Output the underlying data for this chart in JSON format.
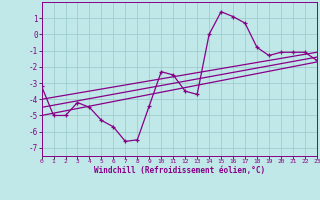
{
  "xlabel": "Windchill (Refroidissement éolien,°C)",
  "xlim": [
    0,
    23
  ],
  "ylim": [
    -7.5,
    2.0
  ],
  "yticks": [
    1,
    0,
    -1,
    -2,
    -3,
    -4,
    -5,
    -6,
    -7
  ],
  "xticks": [
    0,
    1,
    2,
    3,
    4,
    5,
    6,
    7,
    8,
    9,
    10,
    11,
    12,
    13,
    14,
    15,
    16,
    17,
    18,
    19,
    20,
    21,
    22,
    23
  ],
  "bg_color": "#c0e8e8",
  "grid_color": "#98c8c8",
  "line_color": "#880088",
  "line_data": [
    [
      0,
      -3.2
    ],
    [
      1,
      -5.0
    ],
    [
      2,
      -5.0
    ],
    [
      3,
      -4.2
    ],
    [
      4,
      -4.5
    ],
    [
      5,
      -5.3
    ],
    [
      6,
      -5.7
    ],
    [
      7,
      -6.6
    ],
    [
      8,
      -6.5
    ],
    [
      9,
      -4.4
    ],
    [
      10,
      -2.3
    ],
    [
      11,
      -2.5
    ],
    [
      12,
      -3.5
    ],
    [
      13,
      -3.7
    ],
    [
      14,
      0.0
    ],
    [
      15,
      1.4
    ],
    [
      16,
      1.1
    ],
    [
      17,
      0.7
    ],
    [
      18,
      -0.8
    ],
    [
      19,
      -1.3
    ],
    [
      20,
      -1.1
    ],
    [
      21,
      -1.1
    ],
    [
      22,
      -1.1
    ],
    [
      23,
      -1.6
    ]
  ],
  "regression_lines": [
    {
      "x": [
        0,
        23
      ],
      "y": [
        -5.0,
        -1.7
      ]
    },
    {
      "x": [
        0,
        23
      ],
      "y": [
        -4.5,
        -1.4
      ]
    },
    {
      "x": [
        0,
        23
      ],
      "y": [
        -4.0,
        -1.1
      ]
    }
  ]
}
